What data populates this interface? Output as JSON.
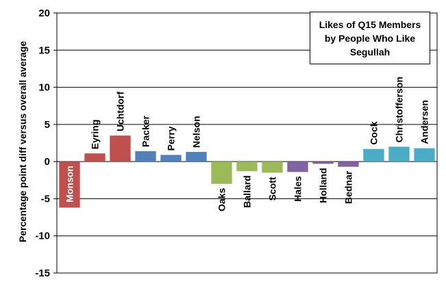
{
  "chart_data": {
    "type": "bar",
    "title": "Likes of Q15 Members by People Who Like Segullah",
    "ylabel": "Percentage point  diff versus overall average",
    "xlabel": "",
    "ylim": [
      -15,
      20
    ],
    "yticks": [
      -15,
      -10,
      -5,
      0,
      5,
      10,
      15,
      20
    ],
    "grid": true,
    "legend": "none",
    "categories": [
      "Monson",
      "Eyring",
      "Uchtdorf",
      "Packer",
      "Perry",
      "Nelson",
      "Oaks",
      "Ballard",
      "Scott",
      "Hales",
      "Holland",
      "Bednar",
      "Cock",
      "Christofferson",
      "Andersen"
    ],
    "values": [
      -6.2,
      1.1,
      3.5,
      1.4,
      0.9,
      1.3,
      -3.0,
      -1.3,
      -1.5,
      -1.4,
      -0.3,
      -0.7,
      1.7,
      2.0,
      1.8
    ],
    "colors": [
      "#c0504d",
      "#c0504d",
      "#c0504d",
      "#4f81bd",
      "#4f81bd",
      "#4f81bd",
      "#9bbb59",
      "#9bbb59",
      "#9bbb59",
      "#8064a2",
      "#8064a2",
      "#8064a2",
      "#4bacc6",
      "#4bacc6",
      "#4bacc6"
    ]
  }
}
